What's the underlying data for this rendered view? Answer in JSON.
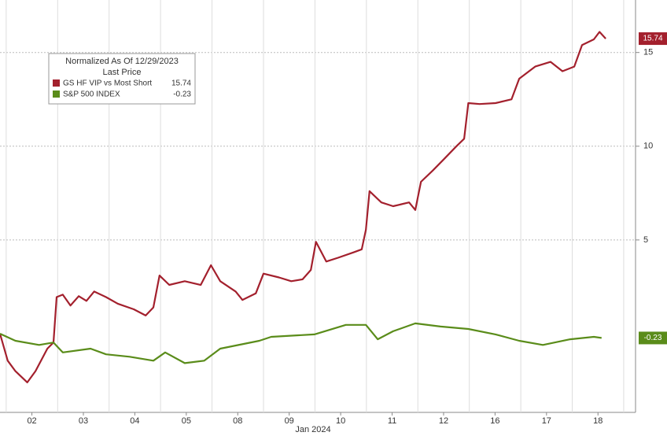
{
  "chart_data": {
    "type": "line",
    "legend_title": "Normalized As Of 12/29/2023",
    "legend_subtitle": "Last Price",
    "xlabel": "Jan 2024",
    "xlim": [
      -0.12,
      12.23
    ],
    "xticks": [
      {
        "value": 0.5,
        "label": "02"
      },
      {
        "value": 1.5,
        "label": "03"
      },
      {
        "value": 2.5,
        "label": "04"
      },
      {
        "value": 3.5,
        "label": "05"
      },
      {
        "value": 4.5,
        "label": "08"
      },
      {
        "value": 5.5,
        "label": "09"
      },
      {
        "value": 6.5,
        "label": "10"
      },
      {
        "value": 7.5,
        "label": "11"
      },
      {
        "value": 8.5,
        "label": "12"
      },
      {
        "value": 9.5,
        "label": "16"
      },
      {
        "value": 10.5,
        "label": "17"
      },
      {
        "value": 11.5,
        "label": "18"
      }
    ],
    "ylim": [
      -4.2,
      17.8
    ],
    "yticks": [
      5,
      10,
      15
    ],
    "grid": true,
    "series": [
      {
        "name": "GS HF VIP vs Most Short",
        "color": "#a3202d",
        "last_value": 15.74,
        "x": [
          -0.12,
          0.03,
          0.18,
          0.41,
          0.57,
          0.8,
          0.92,
          0.98,
          1.1,
          1.25,
          1.41,
          1.56,
          1.71,
          1.94,
          2.17,
          2.48,
          2.71,
          2.86,
          2.98,
          3.17,
          3.47,
          3.78,
          3.98,
          4.16,
          4.46,
          4.59,
          4.85,
          5.0,
          5.3,
          5.54,
          5.76,
          5.92,
          6.02,
          6.22,
          6.45,
          6.76,
          6.91,
          6.99,
          7.06,
          7.29,
          7.52,
          7.83,
          7.95,
          8.06,
          8.29,
          8.52,
          8.75,
          8.9,
          8.98,
          9.2,
          9.51,
          9.82,
          9.97,
          10.28,
          10.58,
          10.81,
          11.04,
          11.19,
          11.42,
          11.53,
          11.65
        ],
        "values": [
          0,
          -1.44,
          -2.0,
          -2.6,
          -2.0,
          -0.8,
          -0.47,
          1.95,
          2.08,
          1.5,
          2.0,
          1.75,
          2.25,
          1.95,
          1.6,
          1.3,
          0.97,
          1.4,
          3.1,
          2.6,
          2.8,
          2.6,
          3.65,
          2.8,
          2.25,
          1.8,
          2.15,
          3.2,
          3.0,
          2.8,
          2.9,
          3.4,
          4.9,
          3.85,
          4.05,
          4.35,
          4.5,
          5.55,
          7.6,
          7.0,
          6.8,
          7.0,
          6.6,
          8.1,
          8.7,
          9.35,
          10.0,
          10.4,
          12.3,
          12.25,
          12.3,
          12.5,
          13.6,
          14.25,
          14.5,
          14.0,
          14.25,
          15.4,
          15.7,
          16.1,
          15.74
        ]
      },
      {
        "name": "S&P 500 INDEX",
        "color": "#5a8c1a",
        "last_value": -0.23,
        "x": [
          -0.12,
          0.18,
          0.64,
          0.92,
          1.1,
          1.64,
          1.94,
          2.4,
          2.86,
          3.09,
          3.47,
          3.85,
          4.16,
          4.92,
          5.15,
          5.99,
          6.6,
          6.99,
          7.22,
          7.52,
          7.95,
          8.44,
          8.98,
          9.51,
          9.97,
          10.43,
          10.96,
          11.42,
          11.57
        ],
        "values": [
          0,
          -0.38,
          -0.6,
          -0.47,
          -1.0,
          -0.8,
          -1.1,
          -1.23,
          -1.44,
          -1.0,
          -1.57,
          -1.44,
          -0.8,
          -0.38,
          -0.17,
          -0.04,
          0.47,
          0.47,
          -0.3,
          0.13,
          0.55,
          0.38,
          0.25,
          -0.04,
          -0.38,
          -0.6,
          -0.3,
          -0.17,
          -0.23
        ]
      }
    ]
  }
}
